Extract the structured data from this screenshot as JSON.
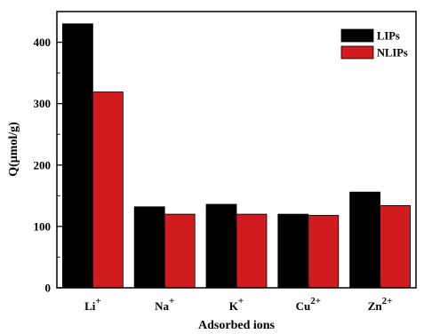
{
  "chart_data": {
    "type": "bar",
    "title": "",
    "xlabel": "Adsorbed ions",
    "ylabel": "Q(μmol/g)",
    "ylim": [
      0,
      450
    ],
    "yticks": [
      0,
      100,
      200,
      300,
      400
    ],
    "grid": false,
    "legend": "top-right",
    "categories": [
      {
        "base": "Li",
        "sup": "+"
      },
      {
        "base": "Na",
        "sup": "+"
      },
      {
        "base": "K",
        "sup": "+"
      },
      {
        "base": "Cu",
        "sup": "2+"
      },
      {
        "base": "Zn",
        "sup": "2+"
      }
    ],
    "series": [
      {
        "name": "LIPs",
        "color": "#000000",
        "values": [
          430,
          132,
          136,
          120,
          156
        ]
      },
      {
        "name": "NLIPs",
        "color": "#d01c1f",
        "values": [
          319,
          120,
          120,
          118,
          134
        ]
      }
    ]
  }
}
